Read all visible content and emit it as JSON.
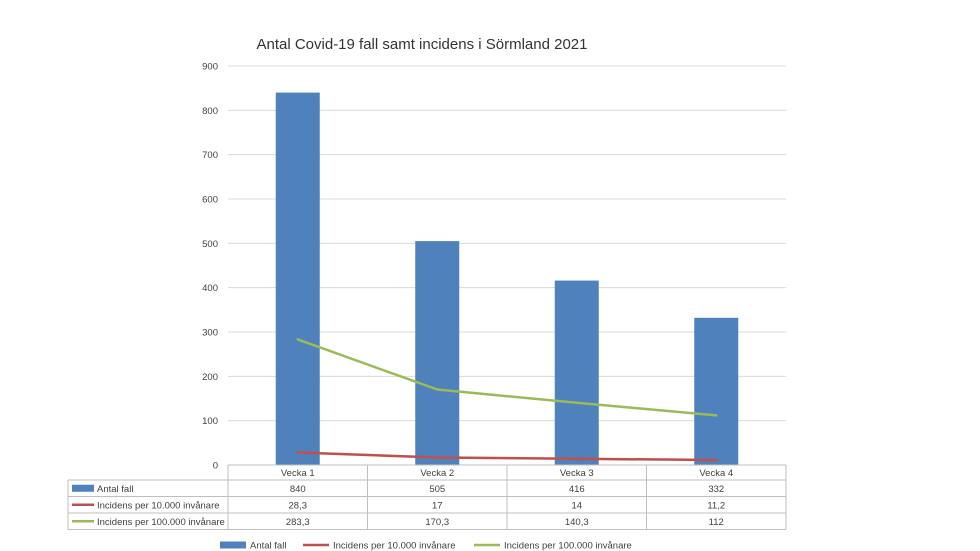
{
  "chart_data": {
    "type": "bar",
    "title": "Antal Covid-19 fall samt incidens i Sörmland 2021",
    "categories": [
      "Vecka 1",
      "Vecka 2",
      "Vecka 3",
      "Vecka 4"
    ],
    "ylim": [
      0,
      900
    ],
    "yticks": [
      0,
      100,
      200,
      300,
      400,
      500,
      600,
      700,
      800,
      900
    ],
    "grid": true,
    "legend_position": "bottom",
    "series": [
      {
        "name": "Antal fall",
        "kind": "bar",
        "color": "#4f81bd",
        "values": [
          840,
          505,
          416,
          332
        ],
        "labels": [
          "840",
          "505",
          "416",
          "332"
        ]
      },
      {
        "name": "Incidens per 10.000 invånare",
        "kind": "line",
        "color": "#c0504d",
        "values": [
          28.3,
          17,
          14,
          11.2
        ],
        "labels": [
          "28,3",
          "17",
          "14",
          "11,2"
        ]
      },
      {
        "name": "Incidens per 100.000 invånare",
        "kind": "line",
        "color": "#9bbb59",
        "values": [
          283.3,
          170.3,
          140.3,
          112
        ],
        "labels": [
          "283,3",
          "170,3",
          "140,3",
          "112"
        ]
      }
    ]
  }
}
